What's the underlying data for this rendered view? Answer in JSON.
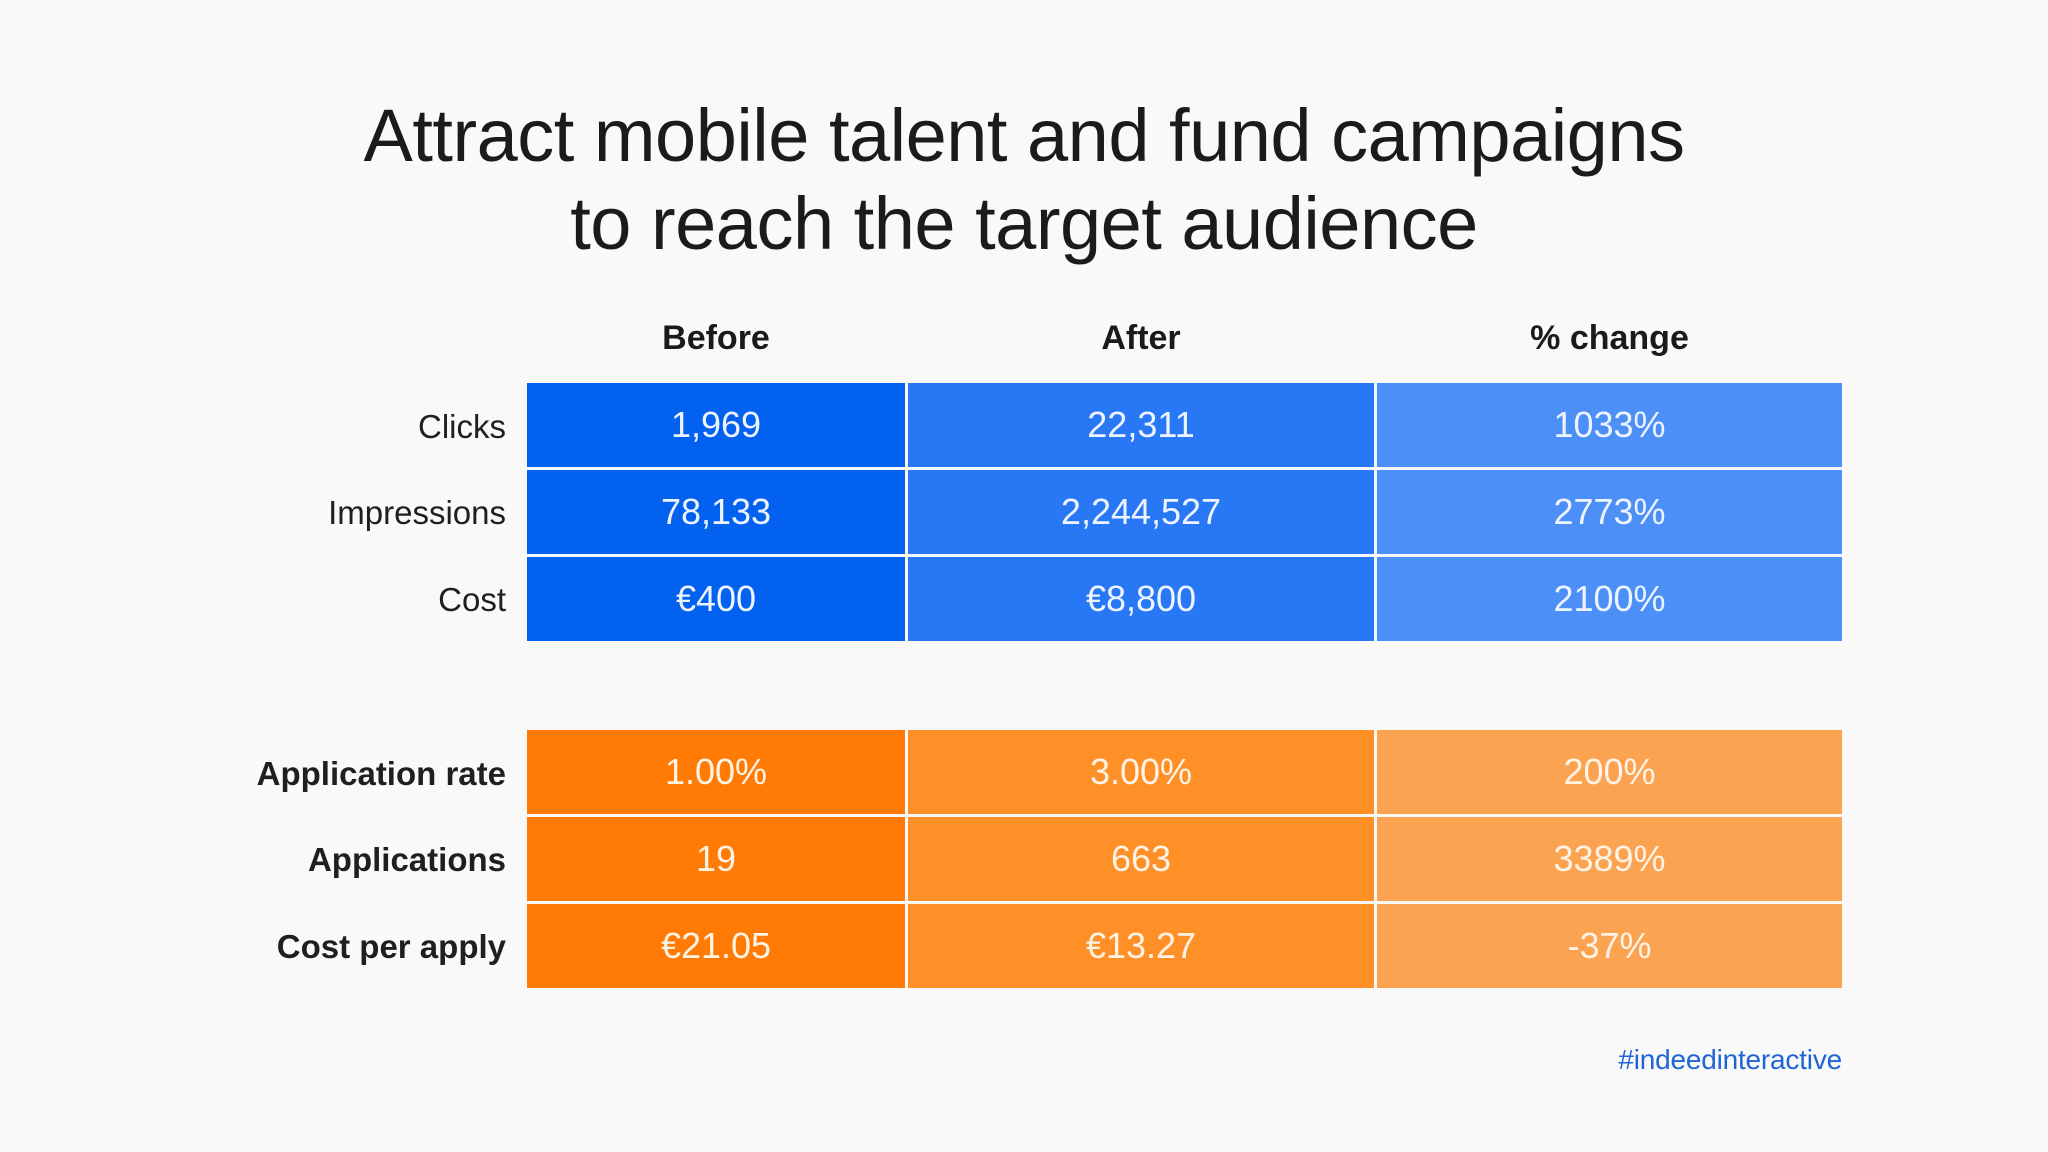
{
  "title": {
    "line1": "Attract mobile talent and fund campaigns",
    "line2": "to reach the target audience"
  },
  "columns": [
    "Before",
    "After",
    "% change"
  ],
  "colors": {
    "blue": [
      "#0361f0",
      "#2878f6",
      "#4c8ff6"
    ],
    "orange": [
      "#ff7b05",
      "#ff9027",
      "#fca352"
    ]
  },
  "top_table": {
    "rows": [
      {
        "label": "Clicks",
        "values": [
          "1,969",
          "22,311",
          "1033%"
        ]
      },
      {
        "label": "Impressions",
        "values": [
          "78,133",
          "2,244,527",
          "2773%"
        ]
      },
      {
        "label": "Cost",
        "values": [
          "€400",
          "€8,800",
          "2100%"
        ]
      }
    ]
  },
  "bottom_table": {
    "rows": [
      {
        "label": "Application rate",
        "values": [
          "1.00%",
          "3.00%",
          "200%"
        ]
      },
      {
        "label": "Applications",
        "values": [
          "19",
          "663",
          "3389%"
        ]
      },
      {
        "label": "Cost per apply",
        "values": [
          "€21.05",
          "€13.27",
          "-37%"
        ]
      }
    ]
  },
  "footer": {
    "hashtag": "#indeedinteractive"
  }
}
